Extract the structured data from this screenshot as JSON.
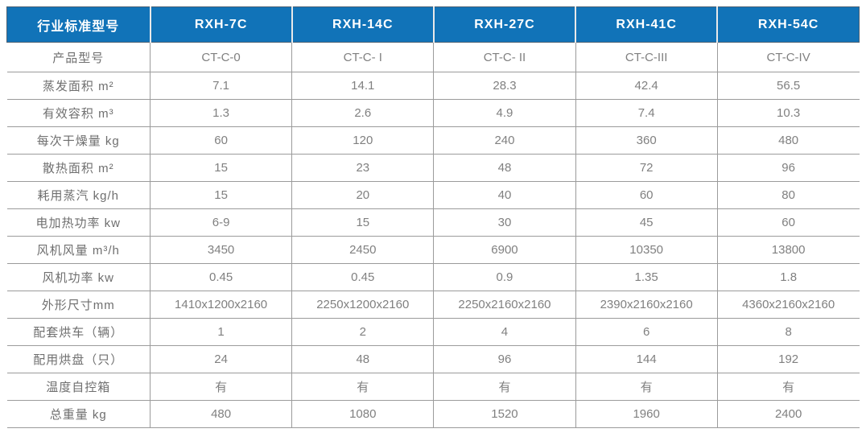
{
  "colors": {
    "header_bg": "#1173b8",
    "header_text": "#ffffff",
    "body_text": "#808080",
    "grid_line": "#9b9b9b"
  },
  "chart_data": {
    "type": "table",
    "title": "",
    "columns": [
      "行业标准型号",
      "RXH-7C",
      "RXH-14C",
      "RXH-27C",
      "RXH-41C",
      "RXH-54C"
    ],
    "rows": [
      {
        "label": "产品型号",
        "values": [
          "CT-C-0",
          "CT-C- I",
          "CT-C- II",
          "CT-C-III",
          "CT-C-IV"
        ]
      },
      {
        "label": "蒸发面积 m²",
        "values": [
          "7.1",
          "14.1",
          "28.3",
          "42.4",
          "56.5"
        ]
      },
      {
        "label": "有效容积 m³",
        "values": [
          "1.3",
          "2.6",
          "4.9",
          "7.4",
          "10.3"
        ]
      },
      {
        "label": "每次干燥量 kg",
        "values": [
          "60",
          "120",
          "240",
          "360",
          "480"
        ]
      },
      {
        "label": "散热面积 m²",
        "values": [
          "15",
          "23",
          "48",
          "72",
          "96"
        ]
      },
      {
        "label": "耗用蒸汽 kg/h",
        "values": [
          "15",
          "20",
          "40",
          "60",
          "80"
        ]
      },
      {
        "label": "电加热功率 kw",
        "values": [
          "6-9",
          "15",
          "30",
          "45",
          "60"
        ]
      },
      {
        "label": "风机风量 m³/h",
        "values": [
          "3450",
          "2450",
          "6900",
          "10350",
          "13800"
        ]
      },
      {
        "label": "风机功率 kw",
        "values": [
          "0.45",
          "0.45",
          "0.9",
          "1.35",
          "1.8"
        ]
      },
      {
        "label": "外形尺寸mm",
        "values": [
          "1410x1200x2160",
          "2250x1200x2160",
          "2250x2160x2160",
          "2390x2160x2160",
          "4360x2160x2160"
        ]
      },
      {
        "label": "配套烘车（辆）",
        "values": [
          "1",
          "2",
          "4",
          "6",
          "8"
        ]
      },
      {
        "label": "配用烘盘（只）",
        "values": [
          "24",
          "48",
          "96",
          "144",
          "192"
        ]
      },
      {
        "label": "温度自控箱",
        "values": [
          "有",
          "有",
          "有",
          "有",
          "有"
        ]
      },
      {
        "label": "总重量 kg",
        "values": [
          "480",
          "1080",
          "1520",
          "1960",
          "2400"
        ]
      }
    ]
  }
}
